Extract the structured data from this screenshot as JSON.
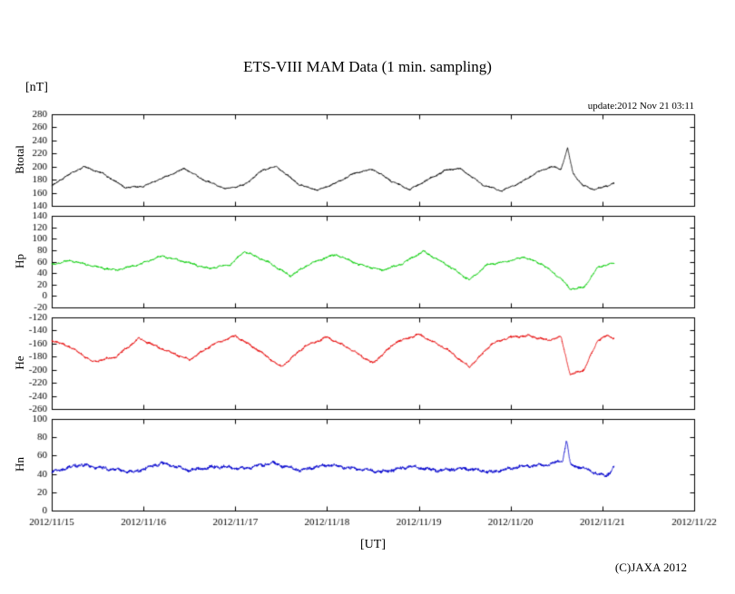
{
  "chart_data": {
    "type": "line",
    "title": "ETS-VIII MAM Data (1 min. sampling)",
    "ylabel": "[nT]",
    "xlabel": "[UT]",
    "update_label": "update:2012 Nov 21 03:11",
    "credit": "(C)JAXA 2012",
    "x_tick_labels": [
      "2012/11/15",
      "2012/11/16",
      "2012/11/17",
      "2012/11/18",
      "2012/11/19",
      "2012/11/20",
      "2012/11/21",
      "2012/11/22"
    ],
    "x_range_days": [
      0,
      7
    ],
    "t_max_days": 6.13,
    "grid": false,
    "legend": "none",
    "panels": [
      {
        "name": "Btotal",
        "color": "#000000",
        "ylim": [
          140,
          280
        ],
        "ytick_step": 20,
        "noise_amp": 1.6,
        "keypoints": {
          "t": [
            0,
            0.15,
            0.35,
            0.55,
            0.8,
            1.0,
            1.2,
            1.45,
            1.65,
            1.9,
            2.1,
            2.3,
            2.45,
            2.7,
            2.9,
            3.1,
            3.3,
            3.5,
            3.7,
            3.9,
            4.1,
            4.3,
            4.45,
            4.7,
            4.9,
            5.1,
            5.3,
            5.45,
            5.55,
            5.62,
            5.68,
            5.78,
            5.9,
            6.0,
            6.13
          ],
          "v": [
            170,
            185,
            200,
            190,
            168,
            170,
            182,
            197,
            180,
            166,
            172,
            195,
            200,
            172,
            164,
            175,
            190,
            196,
            178,
            165,
            180,
            195,
            197,
            172,
            163,
            175,
            192,
            200,
            196,
            228,
            190,
            172,
            165,
            168,
            175
          ]
        }
      },
      {
        "name": "Hp",
        "color": "#00cc00",
        "ylim": [
          -20,
          140
        ],
        "ytick_step": 20,
        "noise_amp": 2.2,
        "keypoints": {
          "t": [
            0,
            0.2,
            0.45,
            0.7,
            0.95,
            1.2,
            1.45,
            1.7,
            1.95,
            2.1,
            2.35,
            2.6,
            2.8,
            3.0,
            3.1,
            3.35,
            3.6,
            3.8,
            4.05,
            4.3,
            4.55,
            4.75,
            4.95,
            5.15,
            5.35,
            5.55,
            5.65,
            5.8,
            5.95,
            6.05,
            6.13
          ],
          "v": [
            55,
            62,
            52,
            45,
            55,
            70,
            60,
            48,
            55,
            78,
            60,
            35,
            55,
            68,
            72,
            55,
            45,
            55,
            78,
            55,
            28,
            55,
            60,
            68,
            55,
            30,
            12,
            15,
            50,
            55,
            57
          ]
        }
      },
      {
        "name": "He",
        "color": "#e60000",
        "ylim": [
          -260,
          -120
        ],
        "ytick_step": 20,
        "noise_amp": 2.2,
        "keypoints": {
          "t": [
            0,
            0.2,
            0.45,
            0.7,
            0.95,
            1.2,
            1.5,
            1.75,
            2.0,
            2.25,
            2.5,
            2.75,
            3.0,
            3.25,
            3.5,
            3.75,
            4.0,
            4.3,
            4.55,
            4.8,
            5.0,
            5.2,
            5.4,
            5.55,
            5.65,
            5.8,
            5.95,
            6.05,
            6.13
          ],
          "v": [
            -155,
            -165,
            -188,
            -180,
            -152,
            -168,
            -185,
            -162,
            -148,
            -170,
            -196,
            -165,
            -150,
            -168,
            -190,
            -158,
            -146,
            -168,
            -196,
            -160,
            -150,
            -148,
            -155,
            -150,
            -208,
            -200,
            -155,
            -148,
            -152
          ]
        }
      },
      {
        "name": "Hn",
        "color": "#0000cd",
        "ylim": [
          0,
          100
        ],
        "ytick_step": 20,
        "noise_amp": 2.4,
        "keypoints": {
          "t": [
            0,
            0.3,
            0.6,
            0.9,
            1.2,
            1.5,
            1.8,
            2.1,
            2.4,
            2.7,
            3.0,
            3.3,
            3.6,
            3.9,
            4.2,
            4.5,
            4.8,
            5.1,
            5.4,
            5.57,
            5.61,
            5.65,
            5.8,
            5.95,
            6.05,
            6.13
          ],
          "v": [
            42,
            50,
            46,
            42,
            52,
            44,
            48,
            46,
            52,
            44,
            50,
            46,
            42,
            48,
            44,
            46,
            42,
            48,
            50,
            55,
            78,
            50,
            46,
            40,
            38,
            48
          ]
        }
      }
    ]
  }
}
